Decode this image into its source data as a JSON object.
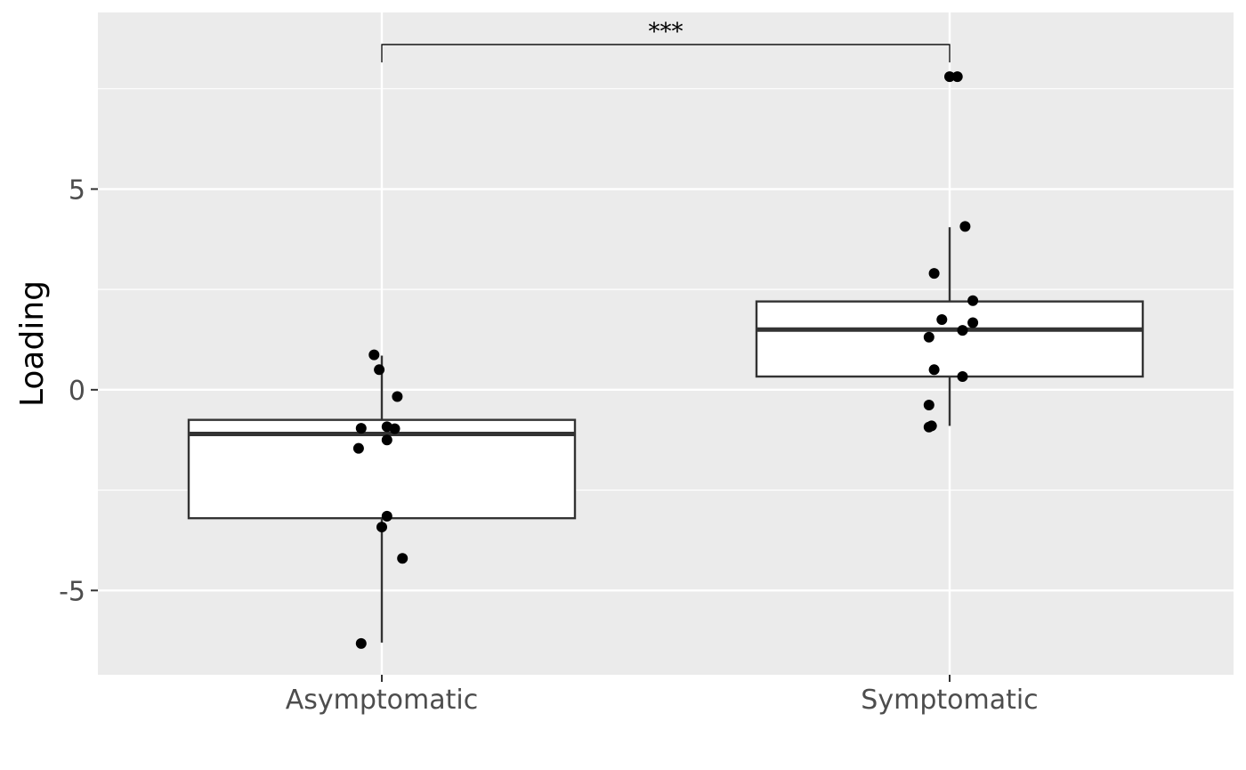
{
  "chart_data": {
    "type": "boxplot",
    "title": "",
    "xlabel": "",
    "ylabel": "Loading",
    "ylim": [
      -7.1,
      9.4
    ],
    "yticks": [
      -5,
      0,
      5
    ],
    "ytick_labels": [
      "-5",
      "0",
      "5"
    ],
    "grid": true,
    "categories": [
      "Asymptomatic",
      "Symptomatic"
    ],
    "boxes": [
      {
        "category": "Asymptomatic",
        "whisker_low": -6.3,
        "q1": -3.2,
        "median": -1.1,
        "q3": -0.75,
        "whisker_high": 0.85
      },
      {
        "category": "Symptomatic",
        "whisker_low": -0.9,
        "q1": 0.33,
        "median": 1.5,
        "q3": 2.2,
        "whisker_high": 4.05
      }
    ],
    "points": [
      {
        "category": "Asymptomatic",
        "jitter": -0.03,
        "y": 0.87
      },
      {
        "category": "Asymptomatic",
        "jitter": -0.01,
        "y": 0.5
      },
      {
        "category": "Asymptomatic",
        "jitter": 0.06,
        "y": -0.17
      },
      {
        "category": "Asymptomatic",
        "jitter": -0.08,
        "y": -0.96
      },
      {
        "category": "Asymptomatic",
        "jitter": 0.02,
        "y": -0.92
      },
      {
        "category": "Asymptomatic",
        "jitter": 0.05,
        "y": -0.97
      },
      {
        "category": "Asymptomatic",
        "jitter": -0.09,
        "y": -1.46
      },
      {
        "category": "Asymptomatic",
        "jitter": 0.02,
        "y": -1.25
      },
      {
        "category": "Asymptomatic",
        "jitter": 0.02,
        "y": -3.15
      },
      {
        "category": "Asymptomatic",
        "jitter": 0.0,
        "y": -3.42
      },
      {
        "category": "Asymptomatic",
        "jitter": 0.08,
        "y": -4.2
      },
      {
        "category": "Asymptomatic",
        "jitter": -0.08,
        "y": -6.32
      },
      {
        "category": "Symptomatic",
        "jitter": 0.0,
        "y": 7.8
      },
      {
        "category": "Symptomatic",
        "jitter": 0.03,
        "y": 7.8
      },
      {
        "category": "Symptomatic",
        "jitter": 0.06,
        "y": 4.07
      },
      {
        "category": "Symptomatic",
        "jitter": -0.06,
        "y": 2.9
      },
      {
        "category": "Symptomatic",
        "jitter": 0.09,
        "y": 2.22
      },
      {
        "category": "Symptomatic",
        "jitter": -0.03,
        "y": 1.75
      },
      {
        "category": "Symptomatic",
        "jitter": 0.09,
        "y": 1.67
      },
      {
        "category": "Symptomatic",
        "jitter": 0.05,
        "y": 1.48
      },
      {
        "category": "Symptomatic",
        "jitter": -0.08,
        "y": 1.31
      },
      {
        "category": "Symptomatic",
        "jitter": -0.06,
        "y": 0.5
      },
      {
        "category": "Symptomatic",
        "jitter": 0.05,
        "y": 0.33
      },
      {
        "category": "Symptomatic",
        "jitter": -0.08,
        "y": -0.38
      },
      {
        "category": "Symptomatic",
        "jitter": -0.07,
        "y": -0.9
      },
      {
        "category": "Symptomatic",
        "jitter": -0.08,
        "y": -0.93
      }
    ],
    "significance": {
      "from": "Asymptomatic",
      "to": "Symptomatic",
      "y": 8.6,
      "label": "***"
    },
    "colors": {
      "panel_background": "#ebebeb",
      "grid_major": "#ffffff",
      "box_fill": "#ffffff",
      "box_stroke": "#333333",
      "point": "#000000",
      "tick_text": "#4d4d4d",
      "tick_mark": "#333333"
    }
  }
}
